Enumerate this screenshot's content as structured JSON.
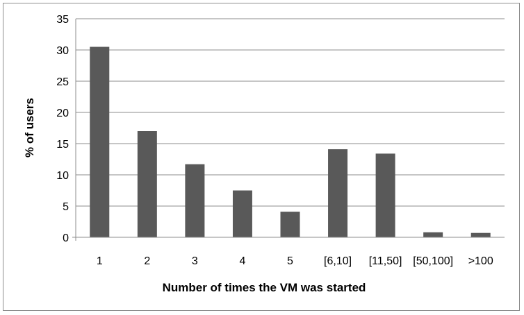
{
  "chart_data": {
    "type": "bar",
    "title": "",
    "xlabel": "Number of times the VM was started",
    "ylabel": "% of users",
    "categories": [
      "1",
      "2",
      "3",
      "4",
      "5",
      "[6,10]",
      "[11,50]",
      "[50,100]",
      ">100"
    ],
    "values": [
      30.5,
      17.0,
      11.7,
      7.5,
      4.1,
      14.1,
      13.4,
      0.8,
      0.7
    ],
    "ylim": [
      0,
      35
    ],
    "yticks": [
      "0",
      "5",
      "10",
      "15",
      "20",
      "25",
      "30",
      "35"
    ],
    "grid": true,
    "legend": "none",
    "bar_color": "#595959",
    "grid_color": "#8c8c8c"
  }
}
